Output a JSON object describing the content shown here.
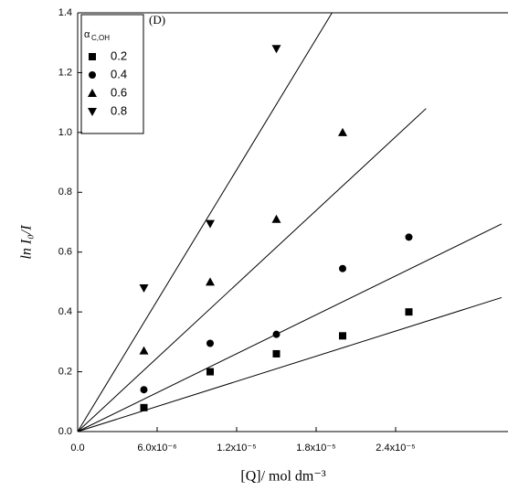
{
  "chart_data": {
    "type": "scatter",
    "x_label": "[Q]/ mol dm⁻³",
    "y_label": "ln I₀/I",
    "annotation": "(D)",
    "legend_title": "α",
    "legend_title_sub": "C,OH",
    "legend_position": "upper left",
    "xlim": [
      0,
      3.2e-05
    ],
    "ylim": [
      0,
      1.4
    ],
    "xticks": [
      {
        "value": 0,
        "label": "0.0"
      },
      {
        "value": 6e-06,
        "label": "6.0x10⁻⁶"
      },
      {
        "value": 1.2e-05,
        "label": "1.2x10⁻⁵"
      },
      {
        "value": 1.8e-05,
        "label": "1.8x10⁻⁵"
      },
      {
        "value": 2.4e-05,
        "label": "2.4x10⁻⁵"
      }
    ],
    "yticks": [
      {
        "value": 0,
        "label": "0.0"
      },
      {
        "value": 0.2,
        "label": "0.2"
      },
      {
        "value": 0.4,
        "label": "0.4"
      },
      {
        "value": 0.6,
        "label": "0.6"
      },
      {
        "value": 0.8,
        "label": "0.8"
      },
      {
        "value": 1.0,
        "label": "1.0"
      },
      {
        "value": 1.2,
        "label": "1.2"
      },
      {
        "value": 1.4,
        "label": "1.4"
      }
    ],
    "series": [
      {
        "name": "0.2",
        "marker": "square",
        "color": "#000000",
        "x": [
          5e-06,
          1e-05,
          1.5e-05,
          2e-05,
          2.5e-05
        ],
        "values": [
          0.08,
          0.2,
          0.26,
          0.32,
          0.4
        ],
        "fit_x": [
          0,
          3.2e-05
        ],
        "fit_y": [
          0,
          0.448
        ]
      },
      {
        "name": "0.4",
        "marker": "circle",
        "color": "#000000",
        "x": [
          5e-06,
          1e-05,
          1.5e-05,
          2e-05,
          2.5e-05
        ],
        "values": [
          0.14,
          0.295,
          0.325,
          0.545,
          0.65
        ],
        "fit_x": [
          0,
          3.2e-05
        ],
        "fit_y": [
          0,
          0.694
        ]
      },
      {
        "name": "0.6",
        "marker": "triangle-up",
        "color": "#000000",
        "x": [
          5e-06,
          1e-05,
          1.5e-05,
          2e-05
        ],
        "values": [
          0.27,
          0.5,
          0.71,
          1.0
        ],
        "fit_x": [
          0,
          2.63e-05
        ],
        "fit_y": [
          0,
          1.08
        ]
      },
      {
        "name": "0.8",
        "marker": "triangle-down",
        "color": "#000000",
        "x": [
          5e-06,
          1e-05,
          1.5e-05
        ],
        "values": [
          0.48,
          0.695,
          1.28
        ],
        "fit_x": [
          0,
          1.92e-05
        ],
        "fit_y": [
          0,
          1.4
        ]
      }
    ]
  }
}
